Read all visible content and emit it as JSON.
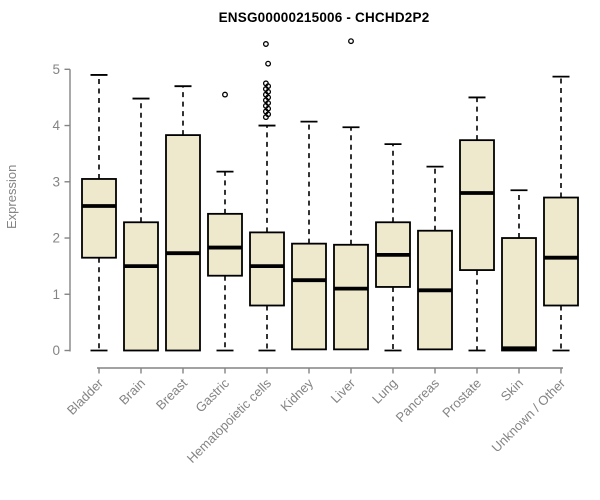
{
  "chart_data": {
    "type": "boxplot",
    "title": "ENSG00000215006 - CHCHD2P2",
    "xlabel": "",
    "ylabel": "Expression",
    "ylim": [
      0,
      5.6
    ],
    "yticks": [
      0,
      1,
      2,
      3,
      4,
      5
    ],
    "grid": false,
    "legend": null,
    "categories": [
      "Bladder",
      "Brain",
      "Breast",
      "Gastric",
      "Hematopoietic cells",
      "Kidney",
      "Liver",
      "Lung",
      "Pancreas",
      "Prostate",
      "Skin",
      "Unknown / Other"
    ],
    "series": [
      {
        "name": "Bladder",
        "whisker_low": 0,
        "q1": 1.65,
        "median": 2.57,
        "q3": 3.05,
        "whisker_high": 4.9,
        "outliers": []
      },
      {
        "name": "Brain",
        "whisker_low": 0,
        "q1": 0.0,
        "median": 1.5,
        "q3": 2.28,
        "whisker_high": 4.48,
        "outliers": []
      },
      {
        "name": "Breast",
        "whisker_low": 0,
        "q1": 0.0,
        "median": 1.73,
        "q3": 3.83,
        "whisker_high": 4.7,
        "outliers": []
      },
      {
        "name": "Gastric",
        "whisker_low": 0,
        "q1": 1.33,
        "median": 1.83,
        "q3": 2.43,
        "whisker_high": 3.18,
        "outliers": [
          4.55
        ]
      },
      {
        "name": "Hematopoietic cells",
        "whisker_low": 0,
        "q1": 0.8,
        "median": 1.5,
        "q3": 2.1,
        "whisker_high": 4.0,
        "outliers": [
          5.45,
          5.1,
          4.75,
          4.7,
          4.65,
          4.6,
          4.55,
          4.5,
          4.45,
          4.4,
          4.35,
          4.3,
          4.25,
          4.2,
          4.15
        ]
      },
      {
        "name": "Kidney",
        "whisker_low": 0,
        "q1": 0.02,
        "median": 1.25,
        "q3": 1.9,
        "whisker_high": 4.07,
        "outliers": []
      },
      {
        "name": "Liver",
        "whisker_low": 0,
        "q1": 0.02,
        "median": 1.1,
        "q3": 1.88,
        "whisker_high": 3.97,
        "outliers": [
          5.5
        ]
      },
      {
        "name": "Lung",
        "whisker_low": 0,
        "q1": 1.13,
        "median": 1.7,
        "q3": 2.28,
        "whisker_high": 3.67,
        "outliers": []
      },
      {
        "name": "Pancreas",
        "whisker_low": 0,
        "q1": 0.02,
        "median": 1.07,
        "q3": 2.13,
        "whisker_high": 3.27,
        "outliers": []
      },
      {
        "name": "Prostate",
        "whisker_low": 0,
        "q1": 1.43,
        "median": 2.8,
        "q3": 3.74,
        "whisker_high": 4.5,
        "outliers": []
      },
      {
        "name": "Skin",
        "whisker_low": 0,
        "q1": 0.0,
        "median": 0.04,
        "q3": 2.0,
        "whisker_high": 2.85,
        "outliers": []
      },
      {
        "name": "Unknown / Other",
        "whisker_low": 0,
        "q1": 0.8,
        "median": 1.65,
        "q3": 2.72,
        "whisker_high": 4.87,
        "outliers": []
      }
    ],
    "colors": {
      "box_fill": "#EEE8CD",
      "box_border": "#000000",
      "median": "#000000",
      "whisker": "#000000",
      "outlier": "#000000",
      "axis": "#848484",
      "tick_labels": "#848484",
      "title": "#000000",
      "background": "#FFFFFF"
    }
  }
}
